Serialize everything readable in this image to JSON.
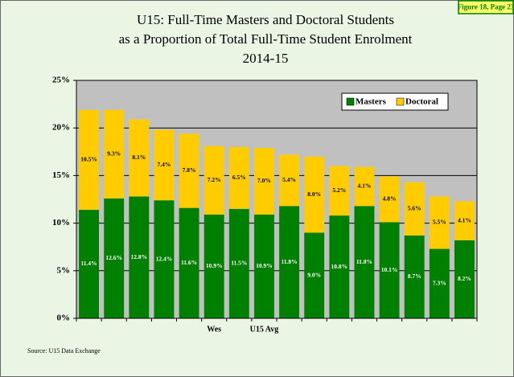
{
  "chart_data": {
    "type": "stacked_bar",
    "title": [
      "U15: Full-Time Masters and Doctoral Students",
      "as a Proportion of Total Full-Time Student Enrolment",
      "2014-15"
    ],
    "figure_label": "Figure 18, Page 23",
    "source": "Source:  U15 Data Exchange",
    "categories": [
      null,
      null,
      null,
      null,
      null,
      "Wes",
      null,
      "U15 Avg",
      null,
      null,
      null,
      null,
      null,
      null,
      null,
      null
    ],
    "series": [
      {
        "name": "Masters",
        "color": "#008000",
        "values": [
          11.4,
          12.6,
          12.8,
          12.4,
          11.6,
          10.9,
          11.5,
          10.9,
          11.8,
          9.0,
          10.8,
          11.8,
          10.1,
          8.7,
          7.3,
          8.2
        ],
        "value_labels": [
          "11.4%",
          "12.6%",
          "12.8%",
          "12.4%",
          "11.6%",
          "10.9%",
          "11.5%",
          "10.9%",
          "11.8%",
          "9.0%",
          "10.8%",
          "11.8%",
          "10.1%",
          "8.7%",
          "7.3%",
          "8.2%"
        ]
      },
      {
        "name": "Doctoral",
        "color": "#ffcc00",
        "values": [
          10.5,
          9.3,
          8.1,
          7.4,
          7.8,
          7.2,
          6.5,
          7.0,
          5.4,
          8.0,
          5.2,
          4.1,
          4.8,
          5.6,
          5.5,
          4.1
        ],
        "value_labels": [
          "10.5%",
          "9.3%",
          "8.1%",
          "7.4%",
          "7.8%",
          "7.2%",
          "6.5%",
          "7.0%",
          "5.4%",
          "8.0%",
          "5.2%",
          "4.1%",
          "4.8%",
          "5.6%",
          "5.5%",
          "4.1%"
        ]
      }
    ],
    "ylim": [
      0,
      25
    ],
    "yticks": [
      {
        "value": 0,
        "label": "0%"
      },
      {
        "value": 5,
        "label": "5%"
      },
      {
        "value": 10,
        "label": "10%"
      },
      {
        "value": 15,
        "label": "15%"
      },
      {
        "value": 20,
        "label": "20%"
      },
      {
        "value": 25,
        "label": "25%"
      }
    ],
    "grid": true,
    "legend": "top-right"
  }
}
